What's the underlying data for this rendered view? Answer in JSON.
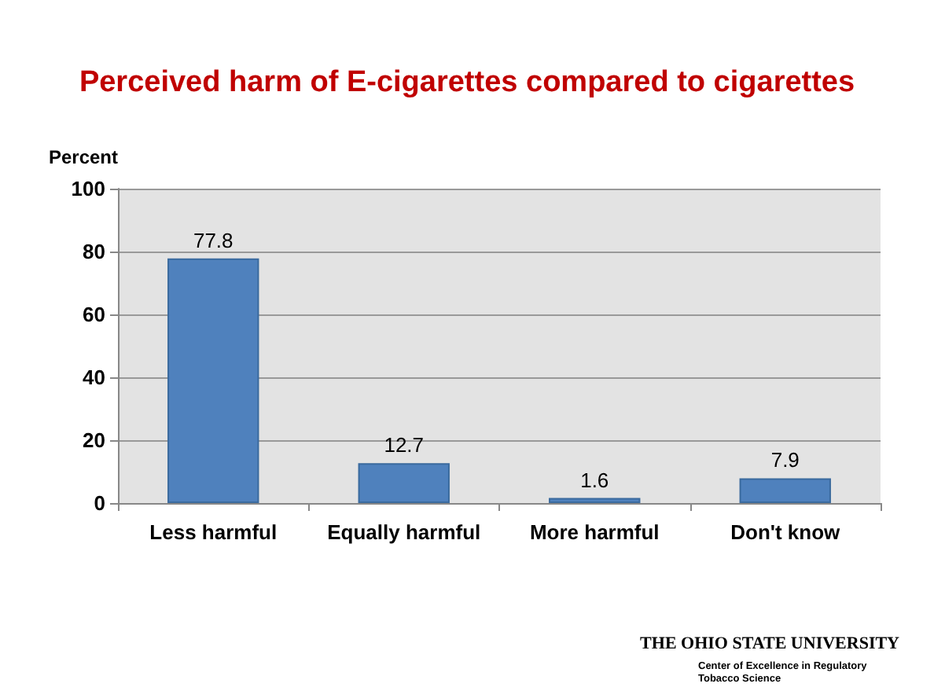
{
  "chart_data": {
    "type": "bar",
    "title": "Perceived harm of E-cigarettes compared to cigarettes",
    "ylabel": "Percent",
    "categories": [
      "Less harmful",
      "Equally harmful",
      "More harmful",
      "Don't know"
    ],
    "values": [
      77.8,
      12.7,
      1.6,
      7.9
    ],
    "color": "#4f81bd",
    "ylim": [
      0,
      100
    ],
    "yticks": [
      0,
      20,
      40,
      60,
      80,
      100
    ],
    "grid": "y",
    "data_labels": true,
    "annotations": [
      "THE OHIO STATE UNIVERSITY",
      "Center of Excellence in Regulatory Tobacco Science"
    ]
  }
}
